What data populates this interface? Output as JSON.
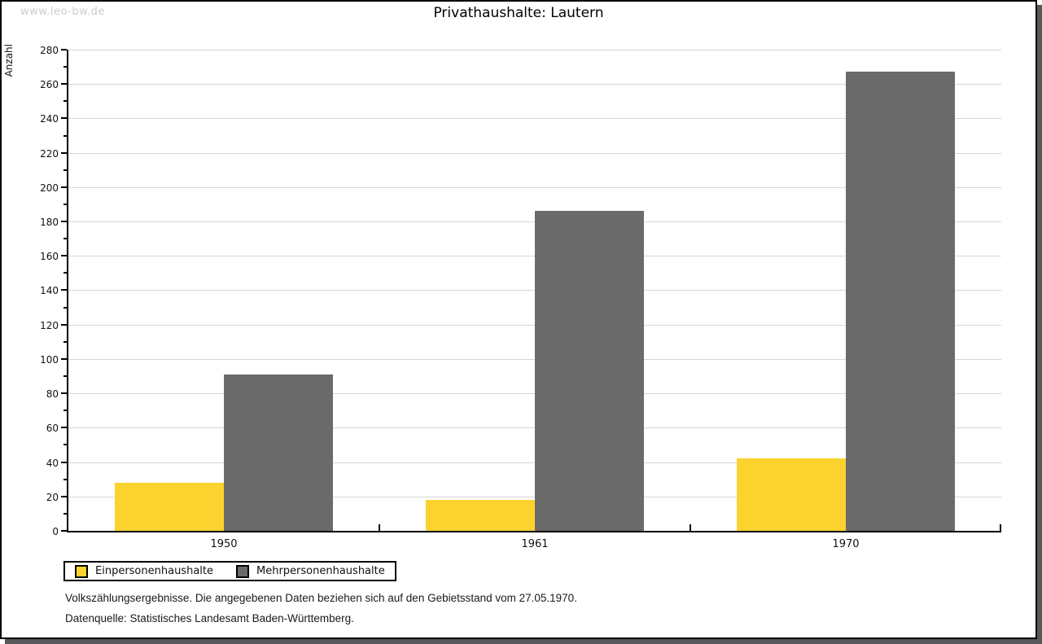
{
  "watermark": "www.leo-bw.de",
  "title": "Privathaushalte: Lautern",
  "chart_data": {
    "type": "bar",
    "title": "Privathaushalte: Lautern",
    "categories": [
      "1950",
      "1961",
      "1970"
    ],
    "series": [
      {
        "name": "Einpersonenhaushalte",
        "color": "#fcd22f",
        "values": [
          28,
          18,
          42
        ]
      },
      {
        "name": "Mehrpersonenhaushalte",
        "color": "#6a6a6a",
        "values": [
          91,
          186,
          267
        ]
      }
    ],
    "xlabel": "",
    "ylabel": "Anzahl",
    "ylim": [
      0,
      280
    ],
    "ytick_step": 20,
    "minor_tick_step": 10,
    "grid": true,
    "legend_position": "bottom-left"
  },
  "footer": {
    "line1": "Volkszählungsergebnisse. Die angegebenen Daten beziehen sich auf den Gebietsstand vom 27.05.1970.",
    "line2": "Datenquelle: Statistisches Landesamt Baden-Württemberg."
  },
  "colors": {
    "grid": "#d7d7d7",
    "axis": "#000000",
    "shadow": "#58585a",
    "watermark": "#cccccc"
  }
}
